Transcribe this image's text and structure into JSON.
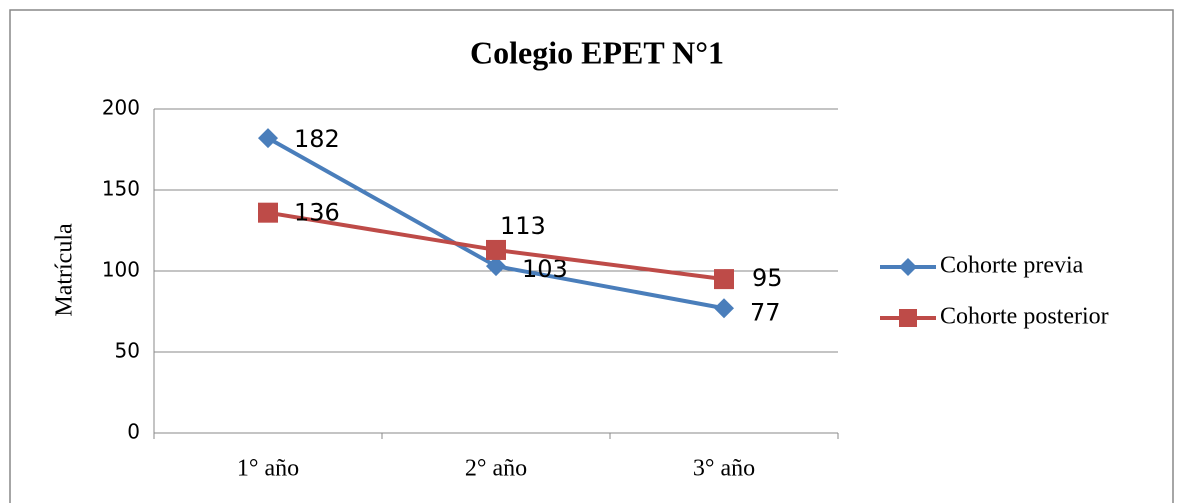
{
  "chart_data": {
    "type": "line",
    "title": "Colegio EPET N°1",
    "y_label": "Matrícula",
    "categories": [
      "1° año",
      "2° año",
      "3° año"
    ],
    "series": [
      {
        "name": "Cohorte previa",
        "color": "#4a7ebb",
        "marker": "diamond",
        "values": [
          182,
          103,
          77
        ]
      },
      {
        "name": "Cohorte posterior",
        "color": "#be4b48",
        "marker": "square",
        "values": [
          136,
          113,
          95
        ]
      }
    ],
    "ylim": [
      0,
      200
    ],
    "yticks": [
      0,
      50,
      100,
      150,
      200
    ],
    "grid": true,
    "legend": "right"
  }
}
